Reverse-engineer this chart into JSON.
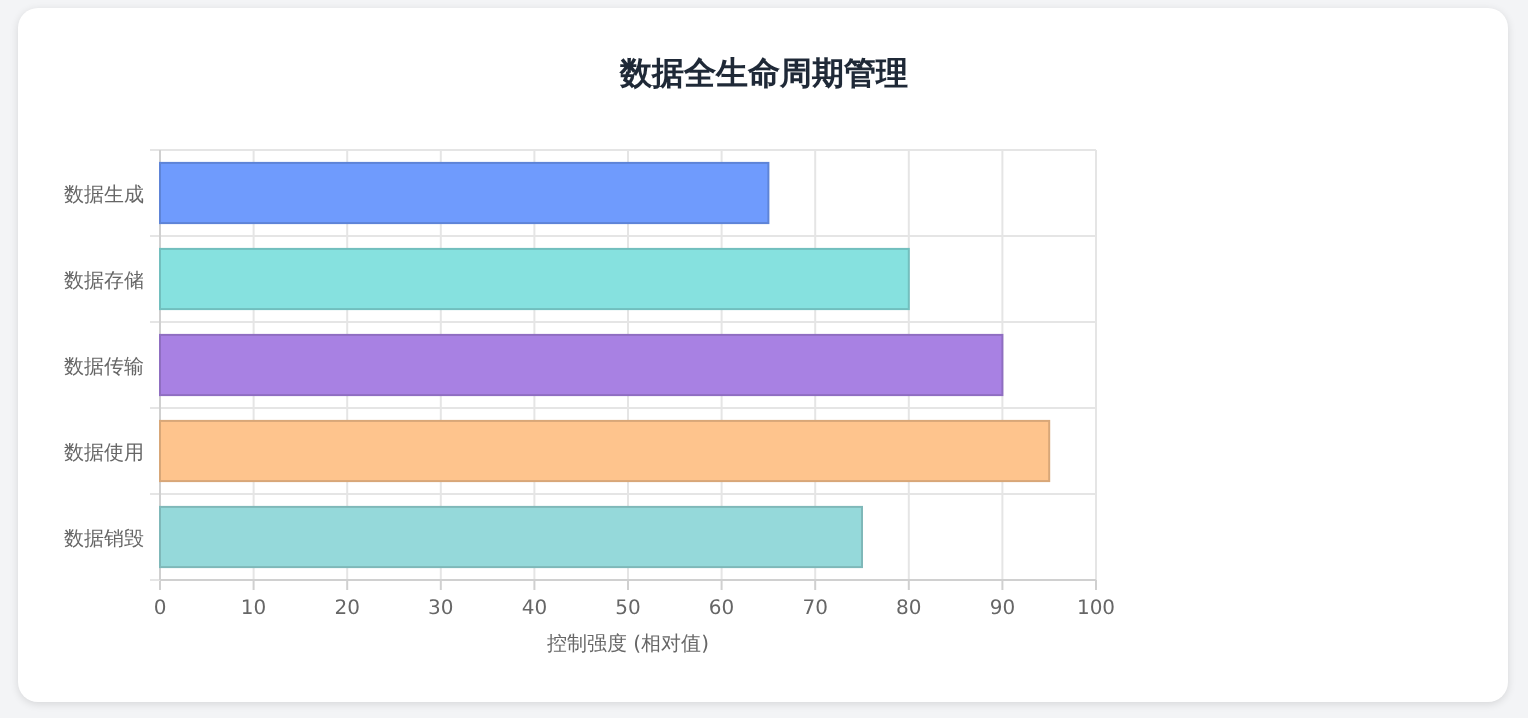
{
  "chart_data": {
    "type": "bar",
    "orientation": "horizontal",
    "title": "数据全生命周期管理",
    "xlabel": "控制强度 (相对值)",
    "categories": [
      "数据生成",
      "数据存储",
      "数据传输",
      "数据使用",
      "数据销毁"
    ],
    "values": [
      65,
      80,
      90,
      95,
      75
    ],
    "colors": [
      "#6f9bfd",
      "#86e1df",
      "#a881e3",
      "#fec48d",
      "#95d9da"
    ],
    "xlim": [
      0,
      100
    ],
    "xticks": [
      0,
      10,
      20,
      30,
      40,
      50,
      60,
      70,
      80,
      90,
      100
    ],
    "grid": true
  }
}
